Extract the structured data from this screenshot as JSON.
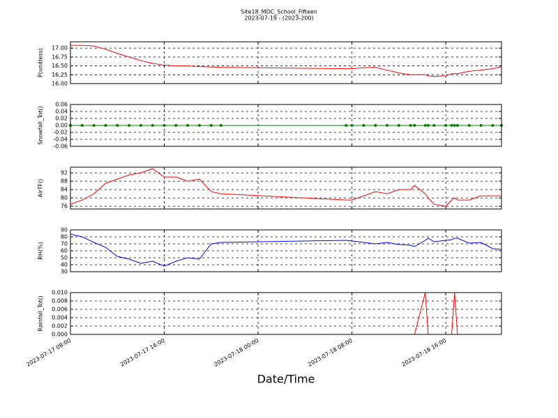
{
  "chart_data": [
    {
      "type": "line",
      "title": "Site18_MDC_School_Fifteen",
      "subtitle": "2023-07-19 - (2023-200)",
      "ylabel": "P(unitless)",
      "x": [
        "2023-07-17 08:00",
        "2023-07-17 09:00",
        "2023-07-17 10:00",
        "2023-07-17 11:00",
        "2023-07-17 12:00",
        "2023-07-17 13:00",
        "2023-07-17 14:00",
        "2023-07-17 15:00",
        "2023-07-17 16:00",
        "2023-07-17 17:00",
        "2023-07-17 18:00",
        "2023-07-17 19:00",
        "2023-07-17 20:00",
        "2023-07-17 20:50",
        "2023-07-18 07:30",
        "2023-07-18 08:00",
        "2023-07-18 09:00",
        "2023-07-18 10:00",
        "2023-07-18 11:00",
        "2023-07-18 12:00",
        "2023-07-18 13:00",
        "2023-07-18 13:20",
        "2023-07-18 14:15",
        "2023-07-18 14:30",
        "2023-07-18 15:00",
        "2023-07-18 16:00",
        "2023-07-18 16:30",
        "2023-07-18 16:45",
        "2023-07-18 17:00",
        "2023-07-18 18:00",
        "2023-07-18 19:00",
        "2023-07-18 20:00",
        "2023-07-18 20:45"
      ],
      "series": [
        {
          "color": "#ff0000",
          "values": [
            17.08,
            17.08,
            17.06,
            16.97,
            16.85,
            16.75,
            16.65,
            16.57,
            16.52,
            16.5,
            16.5,
            16.48,
            16.47,
            16.46,
            16.42,
            16.42,
            16.45,
            16.46,
            16.38,
            16.3,
            16.25,
            16.25,
            16.25,
            16.22,
            16.2,
            16.22,
            16.28,
            16.28,
            16.28,
            16.35,
            16.38,
            16.42,
            16.48
          ]
        }
      ],
      "xlim": [
        "2023-07-17 08:00",
        "2023-07-18 20:45"
      ],
      "xticks": [
        "2023-07-17 08:00",
        "2023-07-17 16:00",
        "2023-07-18 00:00",
        "2023-07-18 08:00",
        "2023-07-18 16:00"
      ],
      "ylim": [
        16,
        17.18
      ],
      "yticks": [
        {
          "value": 16,
          "label": "16.00"
        },
        {
          "value": 16.25,
          "label": "16.25"
        },
        {
          "value": 16.5,
          "label": "16.50"
        },
        {
          "value": 16.75,
          "label": "16.75"
        },
        {
          "value": 17,
          "label": "17.00"
        }
      ],
      "grid": true
    },
    {
      "type": "line",
      "ylabel": "Snowfall_Tot()",
      "x": [
        "2023-07-17 08:00",
        "2023-07-17 09:00",
        "2023-07-17 10:00",
        "2023-07-17 11:00",
        "2023-07-17 12:00",
        "2023-07-17 13:00",
        "2023-07-17 14:00",
        "2023-07-17 15:00",
        "2023-07-17 16:00",
        "2023-07-17 17:00",
        "2023-07-17 18:00",
        "2023-07-17 19:00",
        "2023-07-17 20:00",
        "2023-07-17 20:50",
        "2023-07-18 07:30",
        "2023-07-18 08:00",
        "2023-07-18 09:00",
        "2023-07-18 10:00",
        "2023-07-18 11:00",
        "2023-07-18 12:00",
        "2023-07-18 13:00",
        "2023-07-18 13:20",
        "2023-07-18 14:15",
        "2023-07-18 14:30",
        "2023-07-18 15:00",
        "2023-07-18 16:00",
        "2023-07-18 16:30",
        "2023-07-18 16:45",
        "2023-07-18 17:00",
        "2023-07-18 18:00",
        "2023-07-18 19:00",
        "2023-07-18 20:00",
        "2023-07-18 20:45"
      ],
      "series": [
        {
          "color": "#008000",
          "marker": true,
          "values": [
            0,
            0,
            0,
            0,
            0,
            0,
            0,
            0,
            0,
            0,
            0,
            0,
            0,
            0,
            0,
            0,
            0,
            0,
            0,
            0,
            0,
            0,
            0,
            0,
            0,
            0,
            0,
            0,
            0,
            0,
            0,
            0,
            0
          ]
        }
      ],
      "xlim": [
        "2023-07-17 08:00",
        "2023-07-18 20:45"
      ],
      "xticks": [
        "2023-07-17 08:00",
        "2023-07-17 16:00",
        "2023-07-18 00:00",
        "2023-07-18 08:00",
        "2023-07-18 16:00"
      ],
      "ylim": [
        -0.06,
        0.06
      ],
      "yticks": [
        {
          "value": -0.06,
          "label": "-0.06"
        },
        {
          "value": -0.04,
          "label": "-0.04"
        },
        {
          "value": -0.02,
          "label": "-0.02"
        },
        {
          "value": 0,
          "label": "0.00"
        },
        {
          "value": 0.02,
          "label": "0.02"
        },
        {
          "value": 0.04,
          "label": "0.04"
        },
        {
          "value": 0.06,
          "label": "0.06"
        }
      ],
      "grid": true
    },
    {
      "type": "line",
      "ylabel": "AirTF()",
      "x": [
        "2023-07-17 08:00",
        "2023-07-17 09:00",
        "2023-07-17 10:00",
        "2023-07-17 11:00",
        "2023-07-17 12:00",
        "2023-07-17 13:00",
        "2023-07-17 14:00",
        "2023-07-17 15:00",
        "2023-07-17 16:00",
        "2023-07-17 17:00",
        "2023-07-17 18:00",
        "2023-07-17 19:00",
        "2023-07-17 20:00",
        "2023-07-17 20:50",
        "2023-07-18 07:30",
        "2023-07-18 08:00",
        "2023-07-18 09:00",
        "2023-07-18 10:00",
        "2023-07-18 11:00",
        "2023-07-18 12:00",
        "2023-07-18 13:00",
        "2023-07-18 13:20",
        "2023-07-18 14:15",
        "2023-07-18 14:30",
        "2023-07-18 15:00",
        "2023-07-18 16:00",
        "2023-07-18 16:30",
        "2023-07-18 16:45",
        "2023-07-18 17:00",
        "2023-07-18 18:00",
        "2023-07-18 19:00",
        "2023-07-18 20:00",
        "2023-07-18 20:45"
      ],
      "series": [
        {
          "color": "#ff0000",
          "values": [
            77,
            79,
            82,
            87,
            89,
            91,
            92,
            94,
            90,
            90,
            88,
            89,
            83,
            82,
            79,
            79,
            81,
            83,
            82,
            84,
            84,
            86,
            82,
            80,
            77,
            76,
            79,
            80,
            79,
            79,
            81,
            81,
            81
          ]
        }
      ],
      "xlim": [
        "2023-07-17 08:00",
        "2023-07-18 20:45"
      ],
      "xticks": [
        "2023-07-17 08:00",
        "2023-07-17 16:00",
        "2023-07-18 00:00",
        "2023-07-18 08:00",
        "2023-07-18 16:00"
      ],
      "ylim": [
        74.7,
        94.7
      ],
      "yticks": [
        76,
        80,
        84,
        88,
        92
      ],
      "grid": true
    },
    {
      "type": "line",
      "ylabel": "RH(%)",
      "x": [
        "2023-07-17 08:00",
        "2023-07-17 09:00",
        "2023-07-17 10:00",
        "2023-07-17 11:00",
        "2023-07-17 12:00",
        "2023-07-17 13:00",
        "2023-07-17 14:00",
        "2023-07-17 15:00",
        "2023-07-17 16:00",
        "2023-07-17 17:00",
        "2023-07-17 18:00",
        "2023-07-17 19:00",
        "2023-07-17 20:00",
        "2023-07-17 20:50",
        "2023-07-18 07:30",
        "2023-07-18 08:00",
        "2023-07-18 09:00",
        "2023-07-18 10:00",
        "2023-07-18 11:00",
        "2023-07-18 12:00",
        "2023-07-18 13:00",
        "2023-07-18 13:20",
        "2023-07-18 14:15",
        "2023-07-18 14:30",
        "2023-07-18 15:00",
        "2023-07-18 16:00",
        "2023-07-18 16:30",
        "2023-07-18 16:45",
        "2023-07-18 17:00",
        "2023-07-18 18:00",
        "2023-07-18 19:00",
        "2023-07-18 20:00",
        "2023-07-18 20:45"
      ],
      "series": [
        {
          "color": "#0000ff",
          "values": [
            84,
            80,
            72,
            65,
            52,
            48,
            42,
            45,
            38,
            45,
            50,
            48,
            70,
            72,
            75,
            74,
            72,
            70,
            72,
            69,
            68,
            66,
            75,
            78,
            73,
            75,
            76,
            78,
            78,
            71,
            72,
            63,
            62
          ]
        }
      ],
      "xlim": [
        "2023-07-17 08:00",
        "2023-07-18 20:45"
      ],
      "xticks": [
        "2023-07-17 08:00",
        "2023-07-17 16:00",
        "2023-07-18 00:00",
        "2023-07-18 08:00",
        "2023-07-18 16:00"
      ],
      "ylim": [
        30,
        90
      ],
      "yticks": [
        30,
        40,
        50,
        60,
        70,
        80,
        90
      ],
      "grid": true
    },
    {
      "type": "line",
      "ylabel": "Rainfall_Tot()",
      "xlabel": "Date/Time",
      "x": [
        "2023-07-17 08:00",
        "2023-07-17 09:00",
        "2023-07-17 10:00",
        "2023-07-17 11:00",
        "2023-07-17 12:00",
        "2023-07-17 13:00",
        "2023-07-17 14:00",
        "2023-07-17 15:00",
        "2023-07-17 16:00",
        "2023-07-17 17:00",
        "2023-07-17 18:00",
        "2023-07-17 19:00",
        "2023-07-17 20:00",
        "2023-07-17 20:50",
        "2023-07-18 07:30",
        "2023-07-18 08:00",
        "2023-07-18 09:00",
        "2023-07-18 10:00",
        "2023-07-18 11:00",
        "2023-07-18 12:00",
        "2023-07-18 13:00",
        "2023-07-18 13:20",
        "2023-07-18 14:15",
        "2023-07-18 14:30",
        "2023-07-18 15:00",
        "2023-07-18 16:00",
        "2023-07-18 16:30",
        "2023-07-18 16:45",
        "2023-07-18 17:00",
        "2023-07-18 18:00",
        "2023-07-18 19:00",
        "2023-07-18 20:00",
        "2023-07-18 20:45"
      ],
      "series": [
        {
          "color": "#ff0000",
          "values": [
            0,
            0,
            0,
            0,
            0,
            0,
            0,
            0,
            0,
            0,
            0,
            0,
            0,
            0,
            0,
            0,
            0,
            0,
            0,
            0,
            0,
            0,
            0.01,
            0,
            0,
            0,
            0,
            0.01,
            0,
            0,
            0,
            0,
            0
          ]
        }
      ],
      "xlim": [
        "2023-07-17 08:00",
        "2023-07-18 20:45"
      ],
      "xticks": [
        "2023-07-17 08:00",
        "2023-07-17 16:00",
        "2023-07-18 00:00",
        "2023-07-18 08:00",
        "2023-07-18 16:00"
      ],
      "ylim": [
        0,
        0.01
      ],
      "yticks": [
        {
          "value": 0,
          "label": "0.000"
        },
        {
          "value": 0.002,
          "label": "0.002"
        },
        {
          "value": 0.004,
          "label": "0.004"
        },
        {
          "value": 0.006,
          "label": "0.006"
        },
        {
          "value": 0.008,
          "label": "0.008"
        },
        {
          "value": 0.01,
          "label": "0.010"
        }
      ],
      "grid": true
    }
  ]
}
